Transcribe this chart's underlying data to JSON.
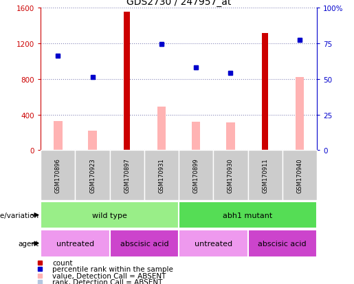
{
  "title": "GDS2730 / 247957_at",
  "samples": [
    "GSM170896",
    "GSM170923",
    "GSM170897",
    "GSM170931",
    "GSM170899",
    "GSM170930",
    "GSM170911",
    "GSM170940"
  ],
  "count_values": [
    null,
    null,
    1560,
    null,
    null,
    null,
    1320,
    null
  ],
  "percentile_rank": [
    1060,
    820,
    null,
    1190,
    930,
    870,
    null,
    1240
  ],
  "value_absent": [
    330,
    220,
    null,
    490,
    320,
    310,
    null,
    820
  ],
  "rank_absent": [
    1060,
    820,
    null,
    1190,
    930,
    870,
    null,
    1240
  ],
  "ylim_left": [
    0,
    1600
  ],
  "ylim_right": [
    0,
    100
  ],
  "yticks_left": [
    0,
    400,
    800,
    1200,
    1600
  ],
  "yticks_right": [
    0,
    25,
    50,
    75,
    100
  ],
  "count_color": "#cc0000",
  "percentile_color": "#0000cc",
  "value_absent_color": "#ffb3b3",
  "rank_absent_color": "#b3c6e0",
  "green_light": "#99ee88",
  "green_dark": "#55dd55",
  "pink_light": "#ee99ee",
  "pink_dark": "#cc44cc",
  "gray_label": "#cccccc",
  "genotype_groups": [
    {
      "label": "wild type",
      "start": 0,
      "end": 4,
      "color": "#99ee88"
    },
    {
      "label": "abh1 mutant",
      "start": 4,
      "end": 8,
      "color": "#55dd55"
    }
  ],
  "agent_groups": [
    {
      "label": "untreated",
      "start": 0,
      "end": 2,
      "color": "#ee99ee"
    },
    {
      "label": "abscisic acid",
      "start": 2,
      "end": 4,
      "color": "#cc44cc"
    },
    {
      "label": "untreated",
      "start": 4,
      "end": 6,
      "color": "#ee99ee"
    },
    {
      "label": "abscisic acid",
      "start": 6,
      "end": 8,
      "color": "#cc44cc"
    }
  ],
  "legend_items": [
    {
      "label": "count",
      "color": "#cc0000"
    },
    {
      "label": "percentile rank within the sample",
      "color": "#0000cc"
    },
    {
      "label": "value, Detection Call = ABSENT",
      "color": "#ffb3b3"
    },
    {
      "label": "rank, Detection Call = ABSENT",
      "color": "#b3c6e0"
    }
  ],
  "bar_width": 0.4,
  "pink_bar_width": 0.25,
  "red_bar_width": 0.18
}
